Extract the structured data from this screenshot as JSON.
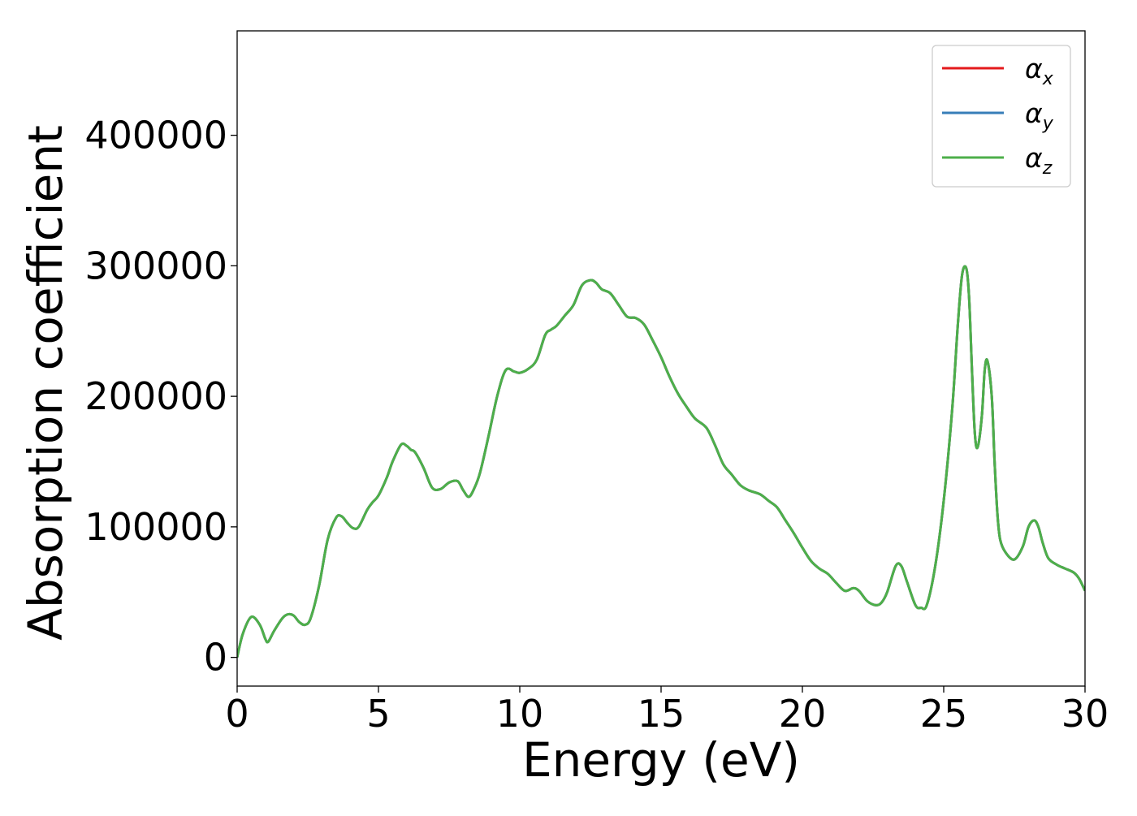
{
  "chart_data": {
    "type": "line",
    "title": "",
    "xlabel": "Energy (eV)",
    "ylabel": "Absorption coefficient",
    "xlim": [
      0,
      30
    ],
    "ylim": [
      -22000,
      480000
    ],
    "xticks": [
      0,
      5,
      10,
      15,
      20,
      25,
      30
    ],
    "yticks": [
      0,
      100000,
      200000,
      300000,
      400000
    ],
    "xtick_labels": [
      "0",
      "5",
      "10",
      "15",
      "20",
      "25",
      "30"
    ],
    "ytick_labels": [
      "0",
      "100000",
      "200000",
      "300000",
      "400000"
    ],
    "grid": false,
    "legend_position": "top-right",
    "x": [
      0,
      0.2,
      0.5,
      0.8,
      1.0,
      1.1,
      1.3,
      1.6,
      1.8,
      2.0,
      2.2,
      2.4,
      2.6,
      2.9,
      3.2,
      3.5,
      3.7,
      3.9,
      4.1,
      4.3,
      4.6,
      4.8,
      5.0,
      5.3,
      5.5,
      5.8,
      6.0,
      6.15,
      6.3,
      6.6,
      6.9,
      7.2,
      7.5,
      7.8,
      8.0,
      8.2,
      8.4,
      8.6,
      8.9,
      9.2,
      9.5,
      9.8,
      10.0,
      10.3,
      10.6,
      10.9,
      11.1,
      11.3,
      11.6,
      11.9,
      12.2,
      12.5,
      12.7,
      12.9,
      13.2,
      13.5,
      13.8,
      14.1,
      14.4,
      14.7,
      15.0,
      15.3,
      15.6,
      15.9,
      16.2,
      16.6,
      16.9,
      17.2,
      17.5,
      17.8,
      18.1,
      18.5,
      18.8,
      19.1,
      19.4,
      19.7,
      20.0,
      20.3,
      20.6,
      20.9,
      21.2,
      21.5,
      21.8,
      22.0,
      22.3,
      22.6,
      22.8,
      23.0,
      23.3,
      23.5,
      23.7,
      24.0,
      24.2,
      24.4,
      24.7,
      25.0,
      25.3,
      25.5,
      25.65,
      25.8,
      25.9,
      26.0,
      26.1,
      26.2,
      26.35,
      26.45,
      26.55,
      26.7,
      26.8,
      26.9,
      27.0,
      27.2,
      27.5,
      27.8,
      28.0,
      28.2,
      28.35,
      28.5,
      28.7,
      29.0,
      29.3,
      29.6,
      29.8,
      30.0
    ],
    "series": [
      {
        "name": "α_x",
        "color": "#e41a1c",
        "values": [
          0,
          18000,
          31000,
          25000,
          14000,
          12000,
          20000,
          30000,
          33000,
          32000,
          27000,
          25000,
          30000,
          55000,
          90000,
          107000,
          108000,
          103000,
          99000,
          100000,
          113000,
          119000,
          124000,
          138000,
          150000,
          163000,
          162000,
          159000,
          157000,
          145000,
          130000,
          129000,
          134000,
          135000,
          128000,
          123000,
          130000,
          142000,
          170000,
          200000,
          220000,
          219000,
          218000,
          221000,
          228000,
          247000,
          251000,
          254000,
          262000,
          270000,
          285000,
          289000,
          287000,
          282000,
          279000,
          270000,
          261000,
          260000,
          255000,
          243000,
          230000,
          215000,
          202000,
          192000,
          183000,
          176000,
          163000,
          148000,
          140000,
          132000,
          128000,
          125000,
          120000,
          115000,
          105000,
          95000,
          84000,
          74000,
          68000,
          64000,
          57000,
          51000,
          53000,
          51000,
          43000,
          40000,
          42000,
          50000,
          70000,
          70000,
          58000,
          40000,
          38000,
          40000,
          70000,
          120000,
          190000,
          255000,
          293000,
          298000,
          275000,
          220000,
          172000,
          161000,
          185000,
          220000,
          227000,
          200000,
          150000,
          110000,
          90000,
          80000,
          75000,
          85000,
          100000,
          105000,
          100000,
          88000,
          76000,
          71000,
          68000,
          65000,
          60000,
          51000
        ]
      },
      {
        "name": "α_y",
        "color": "#377eb8",
        "values": [
          0,
          18000,
          31000,
          25000,
          14000,
          12000,
          20000,
          30000,
          33000,
          32000,
          27000,
          25000,
          30000,
          55000,
          90000,
          107000,
          108000,
          103000,
          99000,
          100000,
          113000,
          119000,
          124000,
          138000,
          150000,
          163000,
          162000,
          159000,
          157000,
          145000,
          130000,
          129000,
          134000,
          135000,
          128000,
          123000,
          130000,
          142000,
          170000,
          200000,
          220000,
          219000,
          218000,
          221000,
          228000,
          247000,
          251000,
          254000,
          262000,
          270000,
          285000,
          289000,
          287000,
          282000,
          279000,
          270000,
          261000,
          260000,
          255000,
          243000,
          230000,
          215000,
          202000,
          192000,
          183000,
          176000,
          163000,
          148000,
          140000,
          132000,
          128000,
          125000,
          120000,
          115000,
          105000,
          95000,
          84000,
          74000,
          68000,
          64000,
          57000,
          51000,
          53000,
          51000,
          43000,
          40000,
          42000,
          50000,
          70000,
          70000,
          58000,
          40000,
          38000,
          40000,
          70000,
          120000,
          190000,
          255000,
          293000,
          298000,
          275000,
          220000,
          172000,
          161000,
          185000,
          220000,
          227000,
          200000,
          150000,
          110000,
          90000,
          80000,
          75000,
          85000,
          100000,
          105000,
          100000,
          88000,
          76000,
          71000,
          68000,
          65000,
          60000,
          51000
        ]
      },
      {
        "name": "α_z",
        "color": "#4daf4a",
        "values": [
          0,
          18000,
          31000,
          25000,
          14000,
          12000,
          20000,
          30000,
          33000,
          32000,
          27000,
          25000,
          30000,
          55000,
          90000,
          107000,
          108000,
          103000,
          99000,
          100000,
          113000,
          119000,
          124000,
          138000,
          150000,
          163000,
          162000,
          159000,
          157000,
          145000,
          130000,
          129000,
          134000,
          135000,
          128000,
          123000,
          130000,
          142000,
          170000,
          200000,
          220000,
          219000,
          218000,
          221000,
          228000,
          247000,
          251000,
          254000,
          262000,
          270000,
          285000,
          289000,
          287000,
          282000,
          279000,
          270000,
          261000,
          260000,
          255000,
          243000,
          230000,
          215000,
          202000,
          192000,
          183000,
          176000,
          163000,
          148000,
          140000,
          132000,
          128000,
          125000,
          120000,
          115000,
          105000,
          95000,
          84000,
          74000,
          68000,
          64000,
          57000,
          51000,
          53000,
          51000,
          43000,
          40000,
          42000,
          50000,
          70000,
          70000,
          58000,
          40000,
          38000,
          40000,
          70000,
          120000,
          190000,
          255000,
          293000,
          298000,
          275000,
          220000,
          172000,
          161000,
          185000,
          220000,
          227000,
          200000,
          150000,
          110000,
          90000,
          80000,
          75000,
          85000,
          100000,
          105000,
          100000,
          88000,
          76000,
          71000,
          68000,
          65000,
          60000,
          51000
        ]
      }
    ],
    "legend": [
      {
        "symbol": "α",
        "subscript": "x",
        "color": "#e41a1c"
      },
      {
        "symbol": "α",
        "subscript": "y",
        "color": "#377eb8"
      },
      {
        "symbol": "α",
        "subscript": "z",
        "color": "#4daf4a"
      }
    ]
  }
}
